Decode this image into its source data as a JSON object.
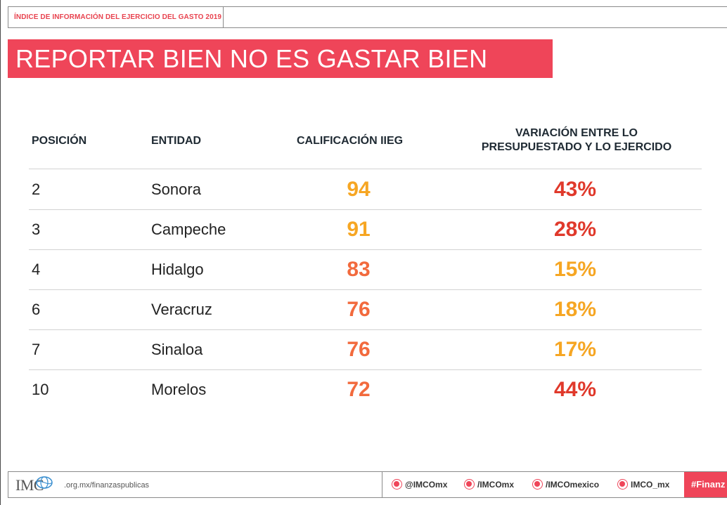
{
  "header": {
    "label": "ÍNDICE DE INFORMACIÓN DEL EJERCICIO DEL GASTO 2019"
  },
  "title": "REPORTAR BIEN NO ES GASTAR BIEN",
  "table": {
    "columns": [
      "POSICIÓN",
      "ENTIDAD",
      "CALIFICACIÓN IIEG",
      "VARIACIÓN ENTRE LO",
      "PRESUPUESTADO Y LO EJERCIDO"
    ],
    "rows": [
      {
        "posicion": "2",
        "entidad": "Sonora",
        "calificacion": "94",
        "variacion": "43%",
        "cal_color": "#f6a623",
        "var_color": "#e0392b"
      },
      {
        "posicion": "3",
        "entidad": "Campeche",
        "calificacion": "91",
        "variacion": "28%",
        "cal_color": "#f6a623",
        "var_color": "#e0392b"
      },
      {
        "posicion": "4",
        "entidad": "Hidalgo",
        "calificacion": "83",
        "variacion": "15%",
        "cal_color": "#f26a3d",
        "var_color": "#f6a623"
      },
      {
        "posicion": "6",
        "entidad": "Veracruz",
        "calificacion": "76",
        "variacion": "18%",
        "cal_color": "#f26a3d",
        "var_color": "#f6a623"
      },
      {
        "posicion": "7",
        "entidad": "Sinaloa",
        "calificacion": "76",
        "variacion": "17%",
        "cal_color": "#f26a3d",
        "var_color": "#f6a623"
      },
      {
        "posicion": "10",
        "entidad": "Morelos",
        "calificacion": "72",
        "variacion": "44%",
        "cal_color": "#f26a3d",
        "var_color": "#e0392b"
      }
    ]
  },
  "footer": {
    "logo_text": "IMC",
    "url": ".org.mx/finanzaspublicas",
    "social": [
      {
        "icon": "twitter-icon",
        "label": "@IMCOmx"
      },
      {
        "icon": "facebook-icon",
        "label": "/IMCOmx"
      },
      {
        "icon": "youtube-icon",
        "label": "/IMCOmexico"
      },
      {
        "icon": "instagram-icon",
        "label": "IMCO_mx"
      }
    ],
    "hashtag": "#Finanz"
  },
  "colors": {
    "accent": "#ef4559",
    "high": "#f6a623",
    "mid": "#f26a3d",
    "bad": "#e0392b"
  }
}
